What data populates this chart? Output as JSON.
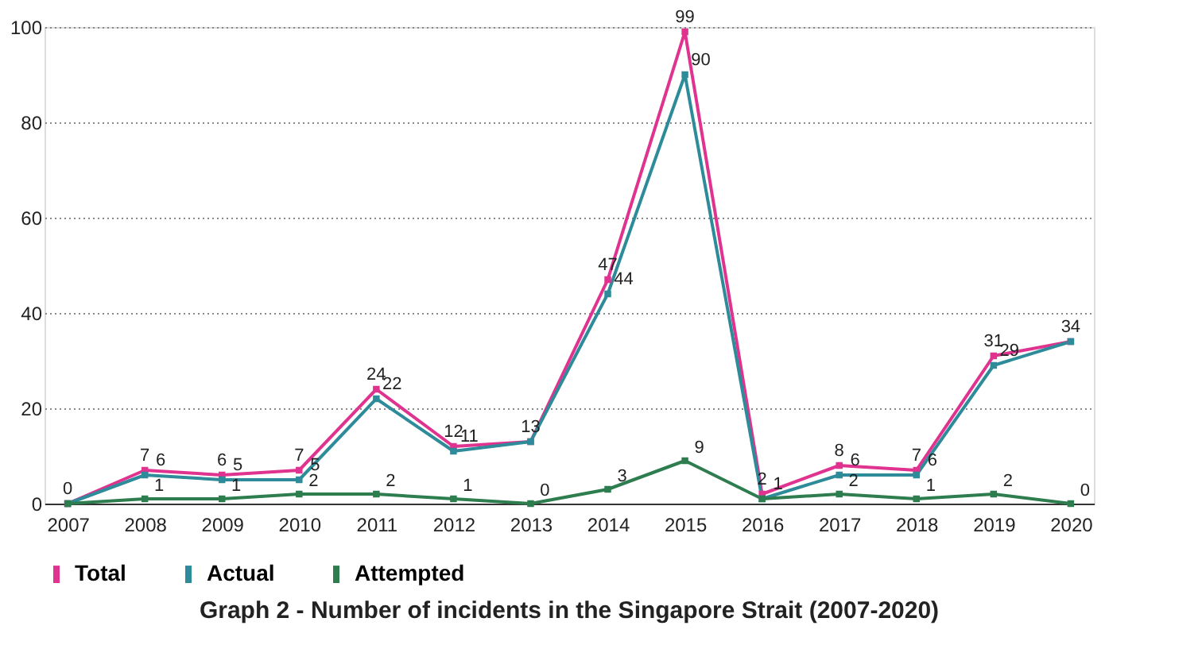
{
  "chart_data": {
    "type": "line",
    "title": "Graph 2 - Number of incidents in the Singapore Strait (2007-2020)",
    "categories": [
      "2007",
      "2008",
      "2009",
      "2010",
      "2011",
      "2012",
      "2013",
      "2014",
      "2015",
      "2016",
      "2017",
      "2018",
      "2019",
      "2020"
    ],
    "series": [
      {
        "name": "Total",
        "color": "#e0338f",
        "values": [
          0,
          7,
          6,
          7,
          24,
          12,
          13,
          47,
          99,
          2,
          8,
          7,
          31,
          34
        ],
        "value_labels": [
          "0",
          "7",
          "6",
          "7",
          "24",
          "12",
          "13",
          "47",
          "99",
          "2",
          "8",
          "7",
          "31",
          "34"
        ]
      },
      {
        "name": "Actual",
        "color": "#2e8b9a",
        "values": [
          0,
          6,
          5,
          5,
          22,
          11,
          13,
          44,
          90,
          1,
          6,
          6,
          29,
          34
        ],
        "value_labels": [
          null,
          "6",
          "5",
          "5",
          "22",
          "11",
          null,
          "44",
          "90",
          "1",
          "6",
          "6",
          "29",
          null
        ]
      },
      {
        "name": "Attempted",
        "color": "#2e7d4f",
        "values": [
          0,
          1,
          1,
          2,
          2,
          1,
          0,
          3,
          9,
          1,
          2,
          1,
          2,
          0
        ],
        "value_labels": [
          null,
          "1",
          "1",
          "2",
          "2",
          "1",
          "0",
          "3",
          "9",
          null,
          "2",
          "1",
          "2",
          "0"
        ]
      }
    ],
    "ylim": [
      0,
      100
    ],
    "yticks": [
      0,
      20,
      40,
      60,
      80,
      100
    ],
    "grid": "y",
    "legend": "bottom",
    "marker": "square",
    "line_style": "solid"
  }
}
